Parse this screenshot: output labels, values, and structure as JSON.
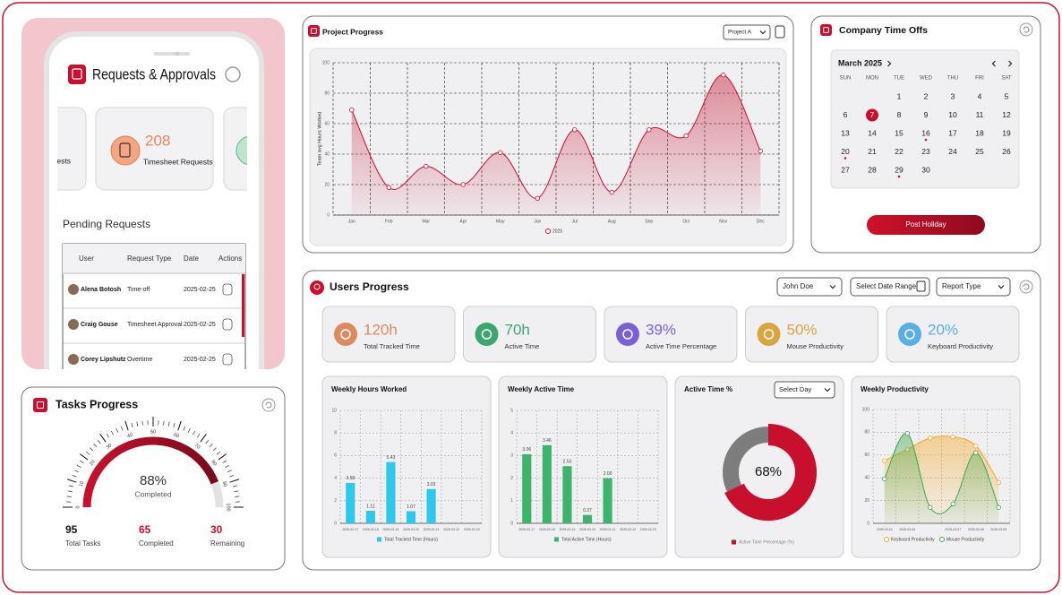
{
  "requests": {
    "title": "Requests & Approvals",
    "cards": [
      {
        "label": "ests"
      },
      {
        "count": 208,
        "label": "Timesheet Requests"
      }
    ],
    "pending_title": "Pending Requests",
    "table": {
      "columns": [
        "User",
        "Request Type",
        "Date",
        "Actions"
      ],
      "rows": [
        [
          "Alena Botosh",
          "Time-off",
          "2025-02-25"
        ],
        [
          "Craig Gouse",
          "Timesheet Approval",
          "2025-02-25"
        ],
        [
          "Corey Lipshutz",
          "Overtime",
          "2025-02-25"
        ]
      ]
    }
  },
  "tasks": {
    "title": "Tasks Progress",
    "stats": [
      {
        "value": 95,
        "label": "Total Tasks",
        "color": "#111111"
      },
      {
        "value": 65,
        "label": "Completed",
        "color": "#c8102e"
      },
      {
        "value": 30,
        "label": "Remaining",
        "color": "#c8102e"
      }
    ]
  },
  "time_offs": {
    "title": "Company Time Offs",
    "month": "March 2025",
    "weekdays": [
      "SUN",
      "MON",
      "TUE",
      "WED",
      "THU",
      "FRI",
      "SAT"
    ],
    "weeks": [
      [
        null,
        null,
        1,
        2,
        3,
        4,
        5
      ],
      [
        6,
        7,
        8,
        9,
        10,
        11,
        12
      ],
      [
        13,
        14,
        15,
        16,
        17,
        18,
        19
      ],
      [
        20,
        21,
        22,
        23,
        24,
        25,
        26
      ],
      [
        27,
        28,
        29,
        30,
        null,
        null,
        null
      ]
    ],
    "selected": 7,
    "marked": [
      16,
      20,
      29
    ],
    "button": "Post Holiday"
  },
  "users": {
    "title": "Users Progress",
    "filters": [
      "John Doe",
      "Select Date Range",
      "Report Type"
    ],
    "stats": [
      {
        "value": "120h",
        "label": "Total Tracked Time",
        "color": "#dd8a5e"
      },
      {
        "value": "70h",
        "label": "Active Time",
        "color": "#3fa56f"
      },
      {
        "value": "39%",
        "label": "Active Time Percentage",
        "color": "#7b5fd9"
      },
      {
        "value": "50%",
        "label": "Mouse Productivity",
        "color": "#d9a540"
      },
      {
        "value": "20%",
        "label": "Keyboard Productivity",
        "color": "#5aaee8"
      }
    ]
  },
  "chart_data": [
    {
      "type": "area",
      "title": "Project Progress",
      "selector": "Project A",
      "y_label": "Team avg Hours Worked",
      "categories": [
        "Jan",
        "Feb",
        "Mar",
        "Apr",
        "May",
        "Jun",
        "Jul",
        "Aug",
        "Sep",
        "Oct",
        "Nov",
        "Dec"
      ],
      "series": [
        {
          "name": "2025",
          "color": "#c8102e",
          "values": [
            69,
            18,
            32,
            20,
            41,
            11,
            56,
            15,
            56,
            52,
            92,
            42
          ]
        }
      ],
      "ylim": [
        0,
        100
      ],
      "yticks": [
        0,
        20,
        40,
        60,
        80,
        100
      ],
      "grid": true
    },
    {
      "type": "bar",
      "title": "Weekly Hours Worked",
      "categories": [
        "2025-02-17",
        "2025-02-18",
        "2025-02-19",
        "2025-02-20",
        "2025-02-21",
        "2025-02-22",
        "2025-02-23"
      ],
      "series": [
        {
          "name": "Total Tracked Time (Hours)",
          "color": "#2ec8ec",
          "values": [
            3.58,
            1.11,
            5.43,
            1.07,
            3.03,
            null,
            null
          ]
        }
      ],
      "ylim": [
        0,
        10
      ],
      "yticks": [
        0,
        2,
        4,
        6,
        8,
        10
      ],
      "grid": true
    },
    {
      "type": "bar",
      "title": "Weekly Active Time",
      "categories": [
        "2025-02-17",
        "2025-02-18",
        "2025-02-19",
        "2025-02-20",
        "2025-02-21",
        "2025-02-22",
        "2025-02-23"
      ],
      "series": [
        {
          "name": "Total Active Time (Hours)",
          "color": "#3db36b",
          "values": [
            3.06,
            3.46,
            2.53,
            0.37,
            2.0,
            null,
            null
          ],
          "value_labels": [
            "3.06",
            "3.46",
            "2.53",
            "0.37",
            "2.00",
            null,
            null
          ]
        }
      ],
      "ylim": [
        0,
        5
      ],
      "yticks": [
        0,
        1,
        2,
        3,
        4,
        5
      ],
      "grid": true
    },
    {
      "type": "donut",
      "title": "Active Time %",
      "selector": "Select Day",
      "legend": "Active Time Percentage (%)",
      "values": [
        68
      ],
      "value_labels": [
        "68%"
      ],
      "colors": [
        "#c8102e"
      ],
      "track_color": "#7d7d7d",
      "ylim": [
        0,
        100
      ]
    },
    {
      "type": "area",
      "title": "Weekly Productivity",
      "categories": [
        "2025-03-04",
        "2025-03-05",
        null,
        "2025-03-07",
        "2025-03-08",
        "2025-03-09"
      ],
      "series": [
        {
          "name": "Keyboard Productivity",
          "color": "#f5a623",
          "values": [
            55,
            65,
            75,
            76,
            68,
            36
          ]
        },
        {
          "name": "Mouse Productivity",
          "color": "#3aa84a",
          "values": [
            39,
            79,
            14,
            17,
            62,
            14
          ]
        }
      ],
      "ylim": [
        0,
        100
      ],
      "yticks": [
        0,
        20,
        40,
        60,
        80,
        100
      ],
      "grid": true
    },
    {
      "type": "gauge",
      "values": [
        88
      ],
      "value_labels": [
        "88%"
      ],
      "caption": "Completed",
      "color": "#c8102e",
      "xlim": [
        0,
        100
      ],
      "xticks": [
        0,
        10,
        20,
        30,
        40,
        50,
        60,
        70,
        80,
        90,
        100
      ]
    }
  ]
}
